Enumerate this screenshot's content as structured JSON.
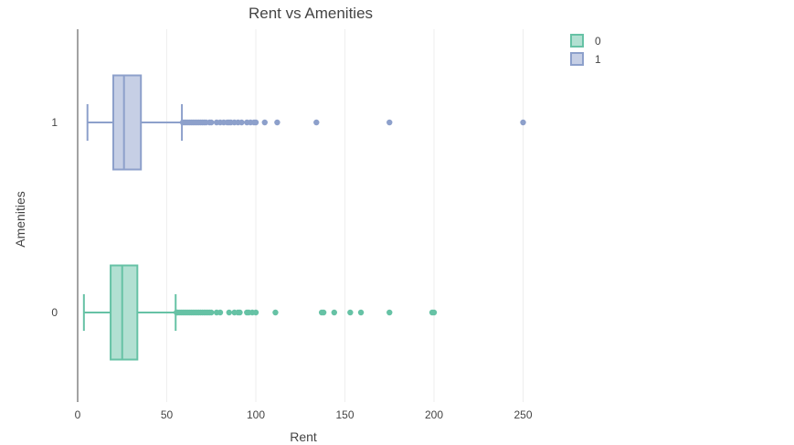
{
  "chart_data": {
    "type": "box",
    "orientation": "horizontal",
    "title": "Rent vs Amenities",
    "xlabel": "Rent",
    "ylabel": "Amenities",
    "xlim": [
      0,
      280
    ],
    "x_ticks": [
      0,
      50,
      100,
      150,
      200,
      250
    ],
    "categories": [
      "0",
      "1"
    ],
    "grid": "vertical gridlines",
    "legend_position": "top-right",
    "series": [
      {
        "name": "0",
        "category": "0",
        "color": "#66c2a5",
        "min": 3.5,
        "q1": 18.5,
        "median": 25,
        "q3": 33.5,
        "max": 55,
        "outliers": [
          55.5,
          56,
          57,
          58,
          59,
          60,
          61,
          62,
          63,
          64,
          65,
          66,
          67,
          68,
          69,
          70,
          71,
          72,
          73,
          74,
          75,
          78,
          80,
          85,
          88,
          90,
          91,
          95,
          96,
          98,
          100,
          111,
          137,
          138,
          144,
          153,
          159,
          175,
          199,
          200
        ]
      },
      {
        "name": "1",
        "category": "1",
        "color": "#8da0cb",
        "min": 5.5,
        "q1": 20,
        "median": 26,
        "q3": 35.5,
        "max": 58.5,
        "outliers": [
          59,
          60,
          61,
          62,
          63,
          64,
          65,
          66,
          67,
          68,
          69,
          70,
          71,
          72,
          74,
          75,
          78,
          80,
          82,
          84,
          85,
          86,
          88,
          90,
          92,
          95,
          97,
          99,
          100,
          105,
          112,
          134,
          175,
          250
        ]
      }
    ]
  }
}
